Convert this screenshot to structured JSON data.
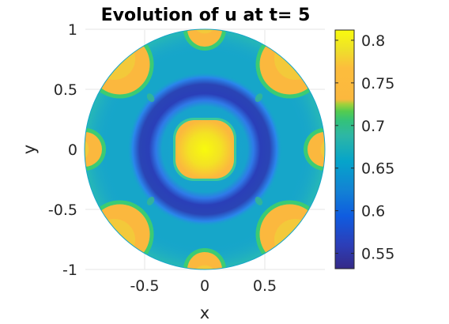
{
  "chart_data": {
    "type": "heatmap",
    "title": "Evolution of u at t= 5",
    "xlabel": "x",
    "ylabel": "y",
    "xlim": [
      -1,
      1
    ],
    "ylim": [
      -1,
      1
    ],
    "grid": true,
    "domain_shape": "unit disk",
    "x_ticks": [
      {
        "value": -0.5,
        "label": "-0.5"
      },
      {
        "value": 0,
        "label": "0"
      },
      {
        "value": 0.5,
        "label": "0.5"
      }
    ],
    "y_ticks": [
      {
        "value": 1,
        "label": "1"
      },
      {
        "value": 0.5,
        "label": "0.5"
      },
      {
        "value": 0,
        "label": "0"
      },
      {
        "value": -0.5,
        "label": "-0.5"
      },
      {
        "value": -1,
        "label": "-1"
      }
    ],
    "colorbar": {
      "colormap": "parula",
      "range": [
        0.532,
        0.812
      ],
      "ticks": [
        {
          "value": 0.8,
          "label": "0.8"
        },
        {
          "value": 0.75,
          "label": "0.75"
        },
        {
          "value": 0.7,
          "label": "0.7"
        },
        {
          "value": 0.65,
          "label": "0.65"
        },
        {
          "value": 0.6,
          "label": "0.6"
        },
        {
          "value": 0.55,
          "label": "0.55"
        }
      ]
    },
    "field": {
      "background": {
        "value": 0.63,
        "color": "#16a6c9"
      },
      "central_spot": {
        "center": [
          0,
          0
        ],
        "radius": 0.25,
        "value": 0.75,
        "peak": 0.81
      },
      "ring": {
        "center": [
          0,
          0
        ],
        "inner_radius": 0.35,
        "outer_radius": 0.62,
        "value": 0.55
      },
      "edge_caps": [
        {
          "angle_deg": 45,
          "value": 0.75
        },
        {
          "angle_deg": 135,
          "value": 0.75
        },
        {
          "angle_deg": 225,
          "value": 0.75
        },
        {
          "angle_deg": 315,
          "value": 0.75
        },
        {
          "angle_deg": 90,
          "value": 0.73
        },
        {
          "angle_deg": 270,
          "value": 0.73
        },
        {
          "angle_deg": 0,
          "value": 0.73
        },
        {
          "angle_deg": 180,
          "value": 0.73
        }
      ]
    }
  }
}
